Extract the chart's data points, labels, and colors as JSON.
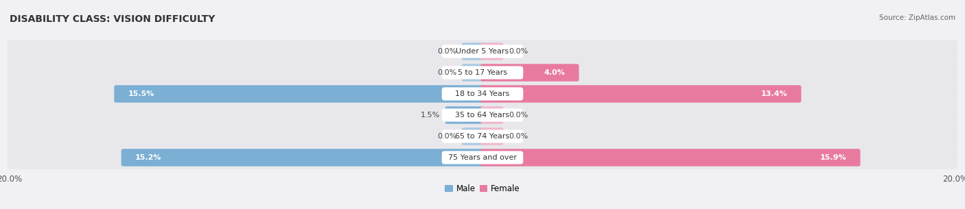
{
  "title": "DISABILITY CLASS: VISION DIFFICULTY",
  "source": "Source: ZipAtlas.com",
  "categories": [
    "Under 5 Years",
    "5 to 17 Years",
    "18 to 34 Years",
    "35 to 64 Years",
    "65 to 74 Years",
    "75 Years and over"
  ],
  "male_values": [
    0.0,
    0.0,
    15.5,
    1.5,
    0.0,
    15.2
  ],
  "female_values": [
    0.0,
    4.0,
    13.4,
    0.0,
    0.0,
    15.9
  ],
  "male_color": "#7bafd4",
  "female_color": "#e87aa0",
  "male_color_light": "#aac9e2",
  "female_color_light": "#f0b8cc",
  "row_bg_color": "#e8e8ec",
  "xlim": 20.0,
  "min_bar": 0.8,
  "title_fontsize": 10,
  "label_fontsize": 8,
  "value_fontsize": 8,
  "tick_fontsize": 8.5,
  "figsize": [
    14.06,
    3.05
  ],
  "dpi": 100
}
